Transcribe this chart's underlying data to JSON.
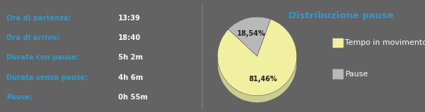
{
  "background_color": "#636363",
  "divider_color": "#999999",
  "left_labels": [
    [
      "Ora di partenza:",
      "13:39"
    ],
    [
      "Ora di arrivo:",
      "18:40"
    ],
    [
      "Durata con pause:",
      "5h 2m"
    ],
    [
      "Durata senza pause:",
      "4h 6m"
    ],
    [
      "Pause:",
      "0h 55m"
    ]
  ],
  "label_color": "#3399cc",
  "value_color": "#ffffff",
  "pie_title": "Distribuzione pause",
  "pie_title_color": "#3399cc",
  "pie_values": [
    81.46,
    18.54
  ],
  "pie_labels": [
    "81,46%",
    "18,54%"
  ],
  "pie_colors": [
    "#f0f0a0",
    "#b8b8b8"
  ],
  "pie_edge_color": "#888888",
  "legend_labels": [
    "Tempo in movimento",
    "Pause"
  ],
  "legend_colors": [
    "#f0f0a0",
    "#b8b8b8"
  ],
  "legend_text_color": "#ffffff",
  "font_size_labels": 7.2,
  "font_size_title": 9.5,
  "font_size_pie": 7.0,
  "font_size_legend": 8.0
}
